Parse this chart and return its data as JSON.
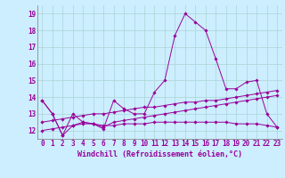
{
  "xlabel": "Windchill (Refroidissement éolien,°C)",
  "background_color": "#cceeff",
  "line_color": "#990099",
  "xlim": [
    -0.5,
    23.5
  ],
  "ylim": [
    11.5,
    19.5
  ],
  "yticks": [
    12,
    13,
    14,
    15,
    16,
    17,
    18,
    19
  ],
  "xticks": [
    0,
    1,
    2,
    3,
    4,
    5,
    6,
    7,
    8,
    9,
    10,
    11,
    12,
    13,
    14,
    15,
    16,
    17,
    18,
    19,
    20,
    21,
    22,
    23
  ],
  "series": [
    [
      13.8,
      13.0,
      11.7,
      13.0,
      12.5,
      12.4,
      12.1,
      13.8,
      13.3,
      13.0,
      13.0,
      14.3,
      15.0,
      17.7,
      19.0,
      18.5,
      18.0,
      16.3,
      14.5,
      14.5,
      14.9,
      15.0,
      13.0,
      12.2
    ],
    [
      13.8,
      13.0,
      11.7,
      12.3,
      12.5,
      12.4,
      12.2,
      12.5,
      12.6,
      12.7,
      12.8,
      12.9,
      13.0,
      13.1,
      13.2,
      13.3,
      13.4,
      13.5,
      13.6,
      13.7,
      13.8,
      13.9,
      14.0,
      14.1
    ],
    [
      12.0,
      12.1,
      12.2,
      12.3,
      12.4,
      12.4,
      12.3,
      12.3,
      12.4,
      12.4,
      12.4,
      12.5,
      12.5,
      12.5,
      12.5,
      12.5,
      12.5,
      12.5,
      12.5,
      12.4,
      12.4,
      12.4,
      12.3,
      12.2
    ],
    [
      12.5,
      12.6,
      12.7,
      12.8,
      12.9,
      13.0,
      13.0,
      13.1,
      13.2,
      13.3,
      13.4,
      13.4,
      13.5,
      13.6,
      13.7,
      13.7,
      13.8,
      13.8,
      13.9,
      14.0,
      14.1,
      14.2,
      14.3,
      14.4
    ]
  ],
  "grid_color": "#aad4d4",
  "tick_fontsize": 5.5,
  "label_fontsize": 6.0,
  "fig_width": 3.2,
  "fig_height": 2.0,
  "dpi": 100
}
